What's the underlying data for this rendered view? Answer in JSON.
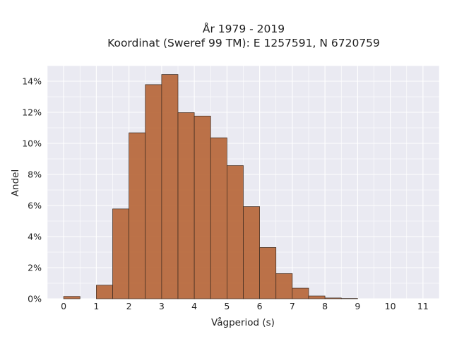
{
  "chart_data": {
    "type": "bar",
    "title_lines": [
      "År 1979 - 2019",
      "Koordinat (Sweref 99 TM): E 1257591, N 6720759"
    ],
    "xlabel": "Vågperiod (s)",
    "ylabel": "Andel",
    "bin_width": 0.5,
    "bin_starts": [
      0,
      0.5,
      1,
      1.5,
      2,
      2.5,
      3,
      3.5,
      4,
      4.5,
      5,
      5.5,
      6,
      6.5,
      7,
      7.5,
      8,
      8.5,
      9,
      9.5,
      10,
      10.5,
      11
    ],
    "values": [
      0.0015,
      0,
      0.0087,
      0.0578,
      0.1068,
      0.1378,
      0.1443,
      0.1198,
      0.1176,
      0.1036,
      0.0857,
      0.0593,
      0.033,
      0.0162,
      0.0068,
      0.0018,
      0.0005,
      0.0002,
      0,
      0,
      0,
      0,
      0
    ],
    "xlim": [
      -0.5,
      11.5
    ],
    "ylim": [
      0,
      0.15
    ],
    "xticks": [
      0,
      1,
      2,
      3,
      4,
      5,
      6,
      7,
      8,
      9,
      10,
      11
    ],
    "xtick_labels": [
      "0",
      "1",
      "2",
      "3",
      "4",
      "5",
      "6",
      "7",
      "8",
      "9",
      "10",
      "11"
    ],
    "yticks": [
      0,
      0.02,
      0.04,
      0.06,
      0.08,
      0.1,
      0.12,
      0.14
    ],
    "ytick_labels": [
      "0%",
      "2%",
      "4%",
      "6%",
      "8%",
      "10%",
      "12%",
      "14%"
    ],
    "grid": true,
    "colors": {
      "bar_fill": "#B86A3E",
      "bar_edge": "#3b2a20",
      "plot_background": "#EAEAF2",
      "grid": "#ffffff",
      "text": "#222222"
    }
  }
}
